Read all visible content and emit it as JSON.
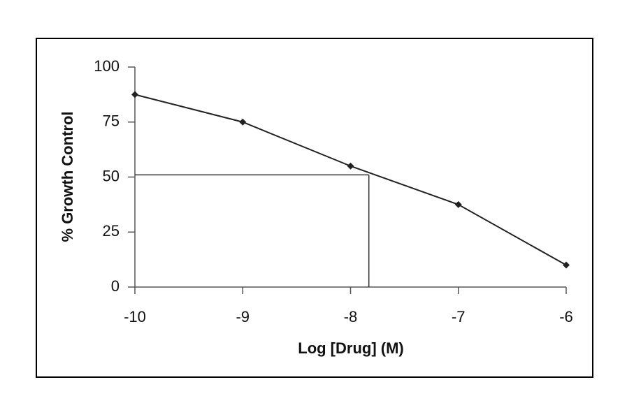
{
  "chart_data": {
    "type": "line",
    "x_label": "Log [Drug] (M)",
    "y_label": "% Growth Control",
    "x": [
      -10,
      -9,
      -8,
      -7,
      -6
    ],
    "series": [
      {
        "color": "#222222",
        "values": [
          87.5,
          75,
          55,
          37.5,
          10
        ]
      }
    ],
    "xlim": [
      -10,
      -6
    ],
    "xticks": [
      -10,
      -9,
      -8,
      -7,
      -6
    ],
    "ylim": [
      0,
      100
    ],
    "yticks": [
      0,
      25,
      50,
      75,
      100
    ],
    "reference_point": {
      "x": -7.83,
      "y": 51
    }
  }
}
